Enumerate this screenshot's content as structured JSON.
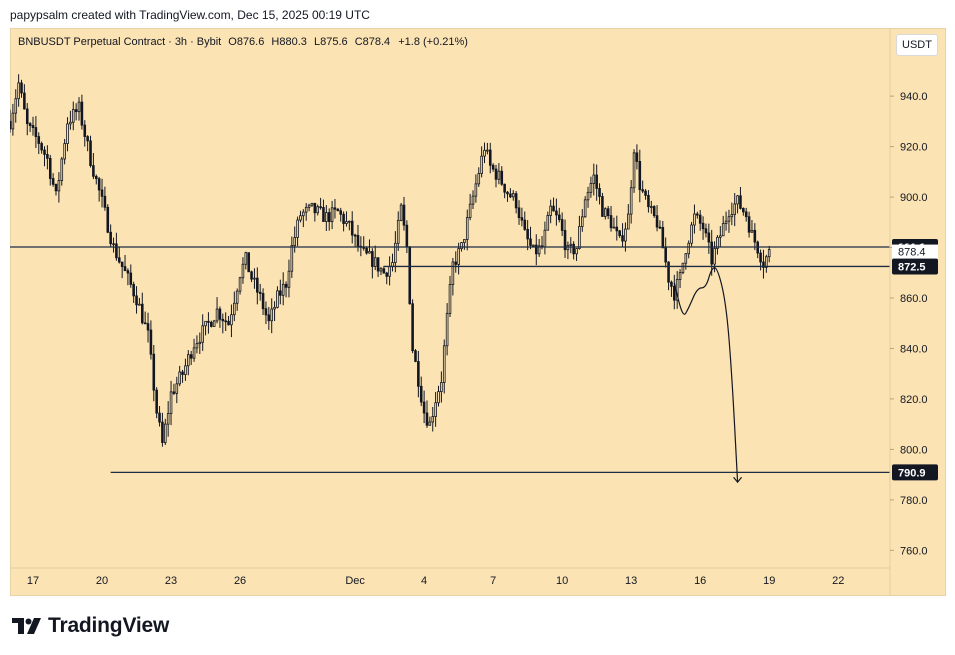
{
  "header": {
    "text": "papypsalm created with TradingView.com, Dec 15, 2025 00:19 UTC"
  },
  "legend": {
    "symbol": "BNBUSDT Perpetual Contract",
    "interval": "3h",
    "exchange": "Bybit",
    "open": "O876.6",
    "high": "H880.3",
    "low": "L875.6",
    "close": "C878.4",
    "change": "+1.8 (+0.21%)"
  },
  "currency_button": "USDT",
  "footer": {
    "brand": "TradingView"
  },
  "colors": {
    "background": "#fbe3b3",
    "candle": "#131722",
    "line": "#1e2d44",
    "price_label": "#131722"
  },
  "chart_data": {
    "type": "candlestick",
    "title": "BNBUSDT Perpetual Contract · 3h · Bybit",
    "ylim": [
      753,
      967
    ],
    "y_ticks": [
      "760.0",
      "780.0",
      "800.0",
      "820.0",
      "840.0",
      "860.0",
      "880.0",
      "900.0",
      "920.0",
      "940.0"
    ],
    "x_range": [
      "2025-11-16T00:00",
      "2025-12-24T06:00"
    ],
    "x_ticks": [
      {
        "label": "17",
        "date": "2025-11-17"
      },
      {
        "label": "20",
        "date": "2025-11-20"
      },
      {
        "label": "23",
        "date": "2025-11-23"
      },
      {
        "label": "26",
        "date": "2025-11-26"
      },
      {
        "label": "Dec",
        "date": "2025-12-01"
      },
      {
        "label": "4",
        "date": "2025-12-04"
      },
      {
        "label": "7",
        "date": "2025-12-07"
      },
      {
        "label": "10",
        "date": "2025-12-10"
      },
      {
        "label": "13",
        "date": "2025-12-13"
      },
      {
        "label": "16",
        "date": "2025-12-16"
      },
      {
        "label": "19",
        "date": "2025-12-19"
      },
      {
        "label": "22",
        "date": "2025-12-22"
      }
    ],
    "series_start": "2025-11-16T00:00",
    "interval_hours": 3,
    "path": [
      [
        0,
        930
      ],
      [
        3,
        945
      ],
      [
        6,
        928
      ],
      [
        10,
        922
      ],
      [
        13,
        915
      ],
      [
        16,
        900
      ],
      [
        20,
        930
      ],
      [
        24,
        935
      ],
      [
        28,
        915
      ],
      [
        32,
        898
      ],
      [
        36,
        880
      ],
      [
        40,
        870
      ],
      [
        44,
        860
      ],
      [
        48,
        845
      ],
      [
        51,
        815
      ],
      [
        53,
        802
      ],
      [
        56,
        822
      ],
      [
        60,
        830
      ],
      [
        64,
        842
      ],
      [
        68,
        848
      ],
      [
        72,
        855
      ],
      [
        76,
        850
      ],
      [
        78,
        860
      ],
      [
        80,
        870
      ],
      [
        82,
        875
      ],
      [
        84,
        868
      ],
      [
        87,
        860
      ],
      [
        90,
        850
      ],
      [
        93,
        860
      ],
      [
        96,
        866
      ],
      [
        98,
        880
      ],
      [
        101,
        893
      ],
      [
        105,
        895
      ],
      [
        110,
        892
      ],
      [
        114,
        894
      ],
      [
        118,
        888
      ],
      [
        122,
        878
      ],
      [
        126,
        875
      ],
      [
        130,
        870
      ],
      [
        133,
        874
      ],
      [
        136,
        895
      ],
      [
        138,
        880
      ],
      [
        140,
        840
      ],
      [
        142,
        828
      ],
      [
        144,
        815
      ],
      [
        146,
        810
      ],
      [
        148,
        820
      ],
      [
        150,
        828
      ],
      [
        152,
        852
      ],
      [
        154,
        873
      ],
      [
        157,
        880
      ],
      [
        160,
        895
      ],
      [
        163,
        910
      ],
      [
        165,
        920
      ],
      [
        167,
        912
      ],
      [
        170,
        908
      ],
      [
        173,
        902
      ],
      [
        176,
        898
      ],
      [
        179,
        885
      ],
      [
        182,
        878
      ],
      [
        185,
        880
      ],
      [
        188,
        895
      ],
      [
        191,
        890
      ],
      [
        194,
        878
      ],
      [
        197,
        880
      ],
      [
        200,
        900
      ],
      [
        203,
        908
      ],
      [
        206,
        895
      ],
      [
        209,
        890
      ],
      [
        212,
        882
      ],
      [
        215,
        892
      ],
      [
        217,
        920
      ],
      [
        219,
        905
      ],
      [
        222,
        895
      ],
      [
        225,
        890
      ],
      [
        227,
        880
      ],
      [
        229,
        868
      ],
      [
        231,
        862
      ],
      [
        233,
        868
      ],
      [
        235,
        880
      ],
      [
        238,
        892
      ],
      [
        241,
        888
      ],
      [
        244,
        875
      ],
      [
        247,
        885
      ],
      [
        250,
        895
      ],
      [
        253,
        898
      ],
      [
        256,
        893
      ],
      [
        258,
        885
      ],
      [
        260,
        880
      ],
      [
        262,
        874
      ],
      [
        264,
        878
      ]
    ],
    "horizontal_lines": [
      {
        "label": "880.2",
        "price": 880.2,
        "full_width": true
      },
      {
        "label": "872.5",
        "price": 872.5,
        "from_date": "2025-12-02T06:00"
      },
      {
        "label": "790.9",
        "price": 790.9,
        "from_date": "2025-11-20T09:00"
      }
    ],
    "current_price": {
      "label": "878.4",
      "price": 878.4
    },
    "drawing": {
      "type": "freehand-arrow",
      "points": [
        [
          "2025-12-14T21:00",
          866
        ],
        [
          "2025-12-15T06:00",
          852
        ],
        [
          "2025-12-15T12:00",
          856
        ],
        [
          "2025-12-15T21:00",
          864
        ],
        [
          "2025-12-16T06:00",
          864
        ],
        [
          "2025-12-16T12:00",
          872
        ],
        [
          "2025-12-16T18:00",
          872
        ],
        [
          "2025-12-17T03:00",
          858
        ],
        [
          "2025-12-17T09:00",
          830
        ],
        [
          "2025-12-17T15:00",
          787
        ]
      ]
    }
  }
}
